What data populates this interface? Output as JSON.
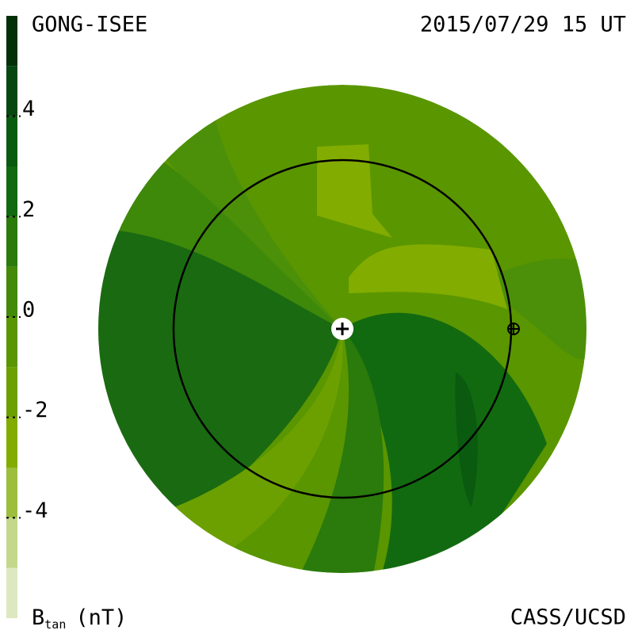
{
  "chart_data": {
    "type": "colormap",
    "title_left": "GONG-ISEE",
    "title_right": "2015/07/29 15 UT",
    "credit": "CASS/UCSD",
    "colorbar_label": {
      "main": "B",
      "sub": "tan",
      "unit": "(nT)"
    },
    "ylim": [
      -6,
      6
    ],
    "yticks": [
      -4,
      -2,
      0,
      2,
      4
    ],
    "levels": [
      -6,
      -5,
      -4,
      -3,
      -2,
      -1,
      0,
      1,
      2,
      3,
      4,
      5,
      6
    ],
    "colors": [
      "#dde8c0",
      "#c4d88c",
      "#9cbe3c",
      "#82ac00",
      "#6ca000",
      "#5a9600",
      "#428a08",
      "#2a7a0c",
      "#126a10",
      "#0a5a10",
      "#064810",
      "#043008"
    ]
  }
}
